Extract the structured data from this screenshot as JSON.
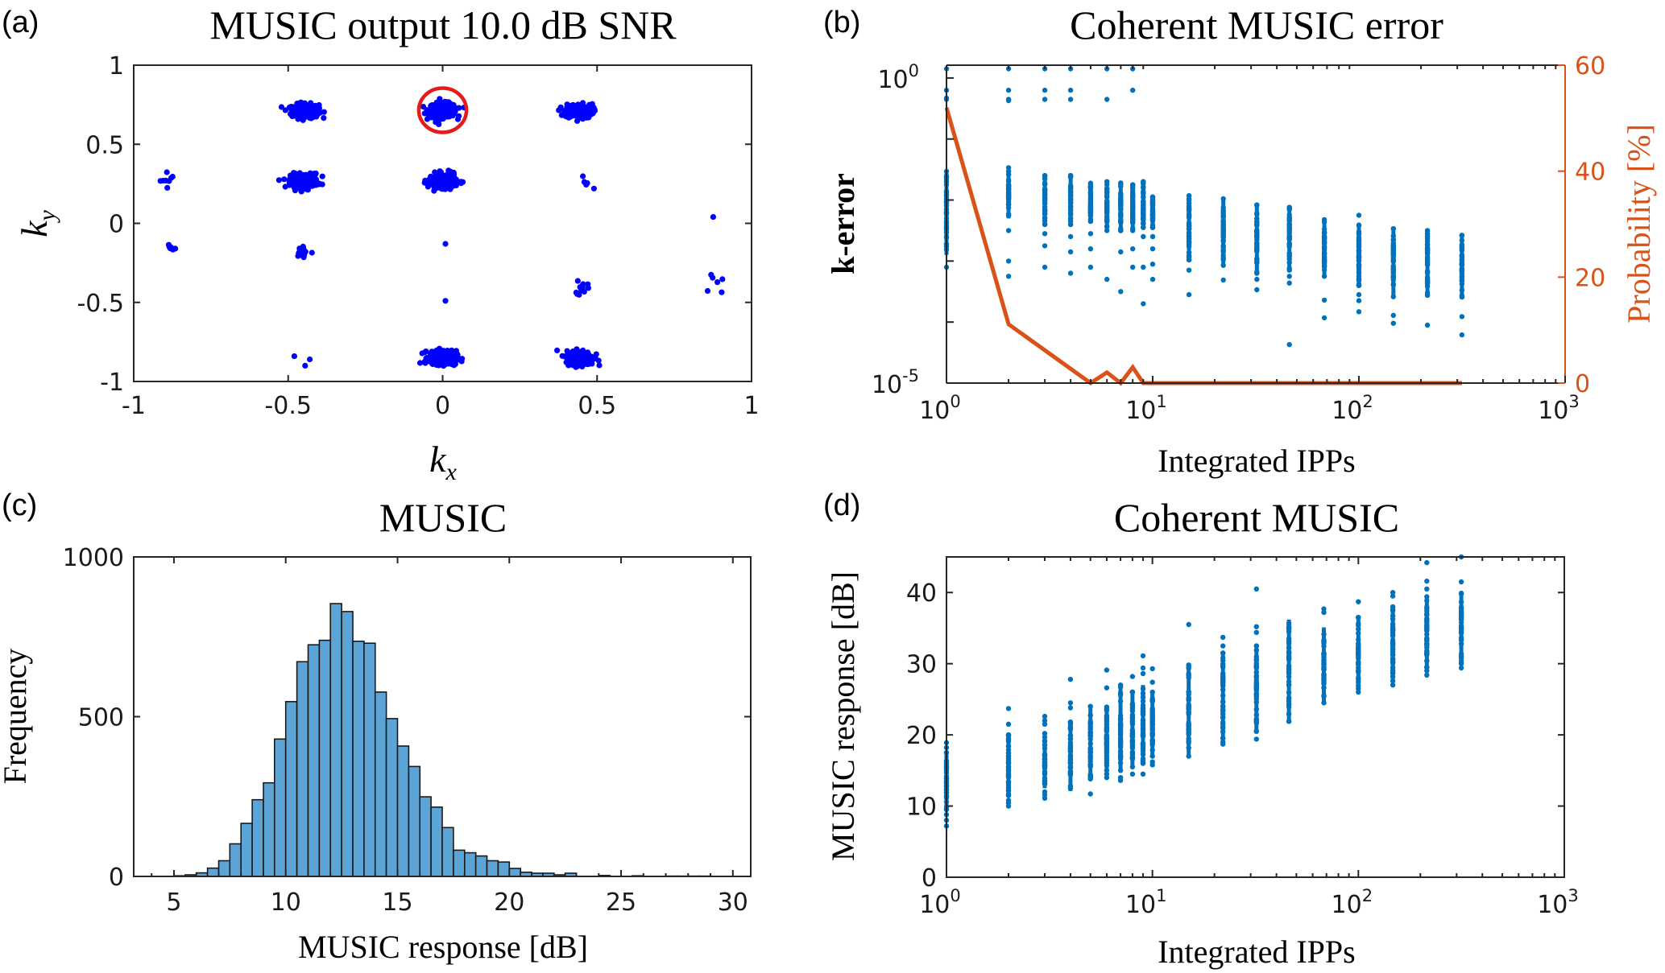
{
  "figure": {
    "panel_labels": [
      "(a)",
      "(b)",
      "(c)",
      "(d)"
    ]
  },
  "chart_data": [
    {
      "id": "a",
      "type": "scatter",
      "title": "MUSIC output 10.0 dB SNR",
      "xlabel": "k",
      "xlabel_sub": "x",
      "ylabel": "k",
      "ylabel_sub": "y",
      "xlim": [
        -1,
        1
      ],
      "ylim": [
        -1,
        1
      ],
      "xticks": [
        -1,
        -0.5,
        0,
        0.5,
        1
      ],
      "xtick_labels": [
        "-1",
        "-0.5",
        "0",
        "0.5",
        "1"
      ],
      "yticks": [
        -1,
        -0.5,
        0,
        0.5,
        1
      ],
      "ytick_labels": [
        "-1",
        "-0.5",
        "0",
        "0.5",
        "1"
      ],
      "grid": false,
      "marker_color": "#0000FF",
      "highlight_color": "#E41A1C",
      "clusters": [
        {
          "kx": -0.445,
          "ky": 0.71,
          "size": "large",
          "count": 260
        },
        {
          "kx": 0.0,
          "ky": 0.715,
          "size": "large",
          "count": 300,
          "highlighted": true
        },
        {
          "kx": 0.44,
          "ky": 0.71,
          "size": "large",
          "count": 240
        },
        {
          "kx": -0.89,
          "ky": 0.27,
          "size": "small",
          "count": 8
        },
        {
          "kx": -0.447,
          "ky": 0.27,
          "size": "large",
          "count": 280
        },
        {
          "kx": 0.0,
          "ky": 0.27,
          "size": "large",
          "count": 240
        },
        {
          "kx": 0.457,
          "ky": 0.27,
          "size": "small",
          "count": 4
        },
        {
          "kx": 0.49,
          "ky": 0.22,
          "size": "single",
          "count": 1
        },
        {
          "kx": 0.876,
          "ky": 0.04,
          "size": "single",
          "count": 1
        },
        {
          "kx": -0.883,
          "ky": -0.175,
          "size": "small",
          "count": 6
        },
        {
          "kx": -0.45,
          "ky": -0.18,
          "size": "small",
          "count": 16
        },
        {
          "kx": 0.009,
          "ky": -0.13,
          "size": "single",
          "count": 1
        },
        {
          "kx": 0.447,
          "ky": -0.41,
          "size": "small",
          "count": 12
        },
        {
          "kx": 0.887,
          "ky": -0.4,
          "size": "small",
          "count": 6
        },
        {
          "kx": 0.009,
          "ky": -0.49,
          "size": "single",
          "count": 1
        },
        {
          "kx": -0.48,
          "ky": -0.84,
          "size": "single",
          "count": 1
        },
        {
          "kx": -0.43,
          "ky": -0.86,
          "size": "single",
          "count": 1
        },
        {
          "kx": -0.445,
          "ky": -0.9,
          "size": "single",
          "count": 1
        },
        {
          "kx": 0.0,
          "ky": -0.85,
          "size": "large",
          "count": 260
        },
        {
          "kx": 0.445,
          "ky": -0.85,
          "size": "large",
          "count": 260
        }
      ],
      "annotation": {
        "type": "ellipse",
        "kx": 0.0,
        "ky": 0.715,
        "rkx": 0.077,
        "rky": 0.14,
        "note": "highlighted cluster"
      }
    },
    {
      "id": "b",
      "type": "scatter",
      "title": "Coherent MUSIC error",
      "xlabel": "Integrated IPPs",
      "ylabel": "k-error",
      "ylabel_right": "Probability [%]",
      "xscale": "log",
      "yscale": "log",
      "xlim": [
        1,
        1000
      ],
      "ylim_log10": [
        -5,
        0.21
      ],
      "ylim_right": [
        0,
        60
      ],
      "xticks": [
        1,
        10,
        100,
        1000
      ],
      "xtick_labels": [
        {
          "base": "10",
          "exp": "0"
        },
        {
          "base": "10",
          "exp": "1"
        },
        {
          "base": "10",
          "exp": "2"
        },
        {
          "base": "10",
          "exp": "3"
        }
      ],
      "yticks_log10": [
        0,
        -5
      ],
      "ytick_labels": [
        {
          "base": "10",
          "exp": "0"
        },
        {
          "base": "10",
          "exp": "-5"
        }
      ],
      "yticks_right": [
        0,
        20,
        40,
        60
      ],
      "ytick_right_labels": [
        "0",
        "20",
        "40",
        "60"
      ],
      "grid": false,
      "series": [
        {
          "name": "k-error",
          "axis": "left",
          "color": "#0072BD",
          "columns": [
            {
              "x": 1,
              "log10_min": -2.9,
              "log10_max": -1.53,
              "outliers_log10": [
                -0.2,
                -0.33,
                -0.35,
                0.15,
                -3.1
              ]
            },
            {
              "x": 2,
              "log10_min": -2.3,
              "log10_max": -1.47,
              "outliers_log10": [
                0.15,
                -0.2,
                -0.35,
                -0.37,
                -2.5,
                -3.0,
                -3.25
              ]
            },
            {
              "x": 3,
              "log10_min": -2.4,
              "log10_max": -1.6,
              "outliers_log10": [
                0.15,
                -0.2,
                -0.35,
                -2.55,
                -2.75,
                -3.1
              ]
            },
            {
              "x": 4,
              "log10_min": -2.4,
              "log10_max": -1.6,
              "outliers_log10": [
                0.15,
                -0.2,
                -0.35,
                -2.6,
                -2.85,
                -3.2
              ]
            },
            {
              "x": 5,
              "log10_min": -2.35,
              "log10_max": -1.7,
              "outliers_log10": [
                -2.55,
                -2.8,
                -3.1
              ]
            },
            {
              "x": 6,
              "log10_min": -2.5,
              "log10_max": -1.7,
              "outliers_log10": [
                0.15,
                -0.35,
                -3.3
              ]
            },
            {
              "x": 7,
              "log10_min": -2.5,
              "log10_max": -1.72,
              "outliers_log10": [
                -2.85,
                -3.5
              ]
            },
            {
              "x": 8,
              "log10_min": -2.5,
              "log10_max": -1.75,
              "outliers_log10": [
                0.15,
                -0.2,
                -2.8,
                -3.1
              ]
            },
            {
              "x": 9,
              "log10_min": -2.45,
              "log10_max": -1.7,
              "outliers_log10": [
                -2.6,
                -3.1,
                -3.7
              ]
            },
            {
              "x": 10,
              "log10_min": -2.45,
              "log10_max": -1.95,
              "outliers_log10": [
                -2.6,
                -2.8,
                -3.05,
                -3.3
              ]
            },
            {
              "x": 15,
              "log10_min": -2.98,
              "log10_max": -1.93,
              "outliers_log10": [
                -3.15,
                -3.55
              ]
            },
            {
              "x": 22,
              "log10_min": -3.07,
              "log10_max": -1.98,
              "outliers_log10": [
                -3.31
              ]
            },
            {
              "x": 32,
              "log10_min": -3.2,
              "log10_max": -2.08,
              "outliers_log10": [
                -3.3,
                -3.47
              ]
            },
            {
              "x": 46,
              "log10_min": -3.15,
              "log10_max": -2.12,
              "outliers_log10": [
                -3.25,
                -3.36,
                -4.37
              ]
            },
            {
              "x": 68,
              "log10_min": -3.25,
              "log10_max": -2.3,
              "outliers_log10": [
                -3.64,
                -3.93
              ]
            },
            {
              "x": 100,
              "log10_min": -3.4,
              "log10_max": -2.41,
              "outliers_log10": [
                -2.25,
                -3.55,
                -3.65,
                -3.83
              ]
            },
            {
              "x": 147,
              "log10_min": -3.6,
              "log10_max": -2.47,
              "outliers_log10": [
                -3.89,
                -4.02
              ]
            },
            {
              "x": 215,
              "log10_min": -3.56,
              "log10_max": -2.49,
              "outliers_log10": [
                -4.05
              ]
            },
            {
              "x": 316,
              "log10_min": -3.6,
              "log10_max": -2.58,
              "outliers_log10": [
                -3.91,
                -4.21
              ]
            }
          ]
        },
        {
          "name": "Probability",
          "axis": "right",
          "type": "line",
          "color": "#D95319",
          "x": [
            1,
            2,
            3,
            4,
            5,
            6,
            7,
            8,
            9,
            10,
            15,
            22,
            32,
            46,
            68,
            100,
            147,
            215,
            316
          ],
          "y": [
            52,
            11.1,
            6.2,
            2.7,
            0,
            2.0,
            0,
            3.0,
            0,
            0,
            0,
            0,
            0,
            0,
            0,
            0,
            0,
            0,
            0
          ]
        }
      ]
    },
    {
      "id": "c",
      "type": "bar",
      "title": "MUSIC",
      "xlabel": "MUSIC response [dB]",
      "ylabel": "Frequency",
      "xlim": [
        3.2,
        30.8
      ],
      "ylim": [
        0,
        1000
      ],
      "xticks": [
        5,
        10,
        15,
        20,
        25,
        30
      ],
      "xtick_labels": [
        "5",
        "10",
        "15",
        "20",
        "25",
        "30"
      ],
      "yticks": [
        0,
        500,
        1000
      ],
      "ytick_labels": [
        "0",
        "500",
        "1000"
      ],
      "grid": false,
      "bin_width": 0.5,
      "bar_color": "#5DA4D6",
      "edge_color": "#1A1A1A",
      "bin_edges_start": [
        5.0,
        5.5,
        6.0,
        6.5,
        7.0,
        7.5,
        8.0,
        8.5,
        9.0,
        9.5,
        10.0,
        10.5,
        11.0,
        11.5,
        12.0,
        12.5,
        13.0,
        13.5,
        14.0,
        14.5,
        15.0,
        15.5,
        16.0,
        16.5,
        17.0,
        17.5,
        18.0,
        18.5,
        19.0,
        19.5,
        20.0,
        20.5,
        21.0,
        21.5,
        22.0,
        22.5,
        24.0,
        25.5,
        27.0,
        27.5,
        28.0,
        28.5
      ],
      "values": [
        2,
        5,
        11,
        26,
        49,
        102,
        166,
        240,
        293,
        430,
        547,
        672,
        725,
        739,
        854,
        829,
        736,
        730,
        577,
        494,
        408,
        344,
        249,
        217,
        153,
        82,
        74,
        64,
        49,
        45,
        25,
        13,
        10,
        10,
        5,
        10,
        3,
        2,
        1,
        1,
        1,
        1
      ]
    },
    {
      "id": "d",
      "type": "scatter",
      "title": "Coherent MUSIC",
      "xlabel": "Integrated IPPs",
      "ylabel": "MUSIC response [dB]",
      "xscale": "log",
      "xlim": [
        1,
        1000
      ],
      "ylim": [
        0,
        45
      ],
      "xticks": [
        1,
        10,
        100,
        1000
      ],
      "xtick_labels": [
        {
          "base": "10",
          "exp": "0"
        },
        {
          "base": "10",
          "exp": "1"
        },
        {
          "base": "10",
          "exp": "2"
        },
        {
          "base": "10",
          "exp": "3"
        }
      ],
      "yticks": [
        0,
        10,
        20,
        30,
        40
      ],
      "ytick_labels": [
        "0",
        "10",
        "20",
        "30",
        "40"
      ],
      "grid": false,
      "color": "#0072BD",
      "columns": [
        {
          "x": 1,
          "min": 9.5,
          "max": 17.5,
          "outliers": [
            7.2,
            8.0,
            8.8,
            18.2,
            18.9
          ]
        },
        {
          "x": 2,
          "min": 11.5,
          "max": 20.0,
          "outliers": [
            10.0,
            10.4,
            10.8,
            21.5,
            23.7
          ]
        },
        {
          "x": 3,
          "min": 12.5,
          "max": 20.2,
          "outliers": [
            11.1,
            11.6,
            12.0,
            21.5,
            22.0,
            22.6
          ]
        },
        {
          "x": 4,
          "min": 12.1,
          "max": 21.8,
          "outliers": [
            23.8,
            24.5,
            27.8
          ]
        },
        {
          "x": 5,
          "min": 14.0,
          "max": 24.0,
          "outliers": [
            11.7,
            13.8,
            14.4
          ]
        },
        {
          "x": 6,
          "min": 15.0,
          "max": 24.2,
          "outliers": [
            14.0,
            14.5,
            26.6,
            29.1
          ]
        },
        {
          "x": 7,
          "min": 15.0,
          "max": 27.1,
          "outliers": [
            13.6,
            14.0
          ]
        },
        {
          "x": 8,
          "min": 15.5,
          "max": 26.0,
          "outliers": [
            14.5,
            28.2
          ]
        },
        {
          "x": 9,
          "min": 16.0,
          "max": 27.0,
          "outliers": [
            14.5,
            28.6,
            29.4,
            31.1
          ]
        },
        {
          "x": 10,
          "min": 17.0,
          "max": 26.0,
          "outliers": [
            15.8,
            16.2,
            27.4,
            29.3
          ]
        },
        {
          "x": 15,
          "min": 17.0,
          "max": 29.8,
          "outliers": [
            35.5
          ]
        },
        {
          "x": 22,
          "min": 19.5,
          "max": 31.5,
          "outliers": [
            18.7,
            19.0,
            32.5,
            33.7
          ]
        },
        {
          "x": 32,
          "min": 20.5,
          "max": 32.5,
          "outliers": [
            19.4,
            34.4,
            35.2,
            40.5
          ]
        },
        {
          "x": 46,
          "min": 21.9,
          "max": 36.2,
          "outliers": []
        },
        {
          "x": 68,
          "min": 24.5,
          "max": 35.1,
          "outliers": [
            37.2,
            37.7
          ]
        },
        {
          "x": 100,
          "min": 26.5,
          "max": 36.5,
          "outliers": [
            26.0,
            38.7
          ]
        },
        {
          "x": 147,
          "min": 27.5,
          "max": 38.0,
          "outliers": [
            27.0,
            39.5,
            40.0
          ]
        },
        {
          "x": 215,
          "min": 29.5,
          "max": 39.4,
          "outliers": [
            28.4,
            29.0,
            40.5,
            41.6,
            44.2
          ]
        },
        {
          "x": 316,
          "min": 30.0,
          "max": 39.9,
          "outliers": [
            29.4,
            41.5,
            45.1
          ]
        }
      ]
    }
  ]
}
